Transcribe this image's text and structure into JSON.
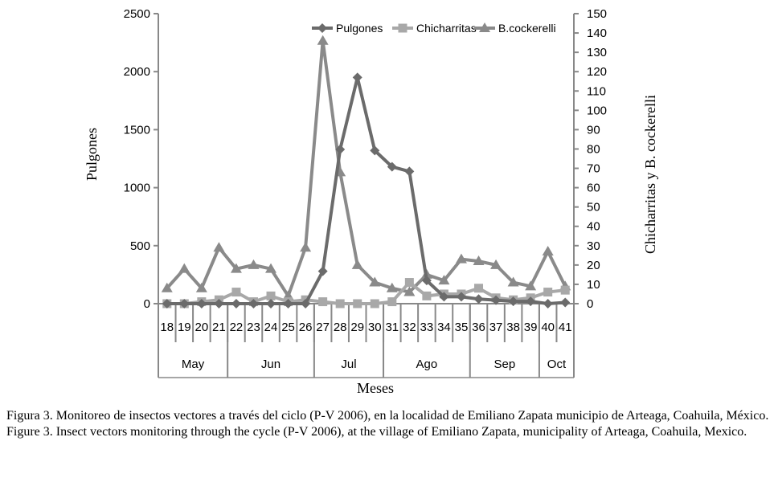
{
  "chart_data": {
    "type": "line",
    "x": [
      "18",
      "19",
      "20",
      "21",
      "22",
      "23",
      "24",
      "25",
      "26",
      "27",
      "28",
      "29",
      "30",
      "31",
      "32",
      "33",
      "34",
      "35",
      "36",
      "37",
      "38",
      "39",
      "40",
      "41"
    ],
    "months": [
      {
        "label": "May",
        "weeks": [
          "18",
          "21"
        ]
      },
      {
        "label": "Jun",
        "weeks": [
          "22",
          "26"
        ]
      },
      {
        "label": "Jul",
        "weeks": [
          "27",
          "30"
        ]
      },
      {
        "label": "Ago",
        "weeks": [
          "31",
          "35"
        ]
      },
      {
        "label": "Sep",
        "weeks": [
          "36",
          "39"
        ]
      },
      {
        "label": "Oct",
        "weeks": [
          "40",
          "41"
        ]
      }
    ],
    "xlabel": "Meses",
    "ylabel": "Pulgones",
    "y2label": "Chicharritas y B. cockerelli",
    "ylim": [
      0,
      2500
    ],
    "y2lim": [
      0,
      150
    ],
    "yticks": [
      0,
      500,
      1000,
      1500,
      2000,
      2500
    ],
    "y2ticks": [
      0,
      10,
      20,
      30,
      40,
      50,
      60,
      70,
      80,
      90,
      100,
      110,
      120,
      130,
      140,
      150
    ],
    "legend_position": "top-right",
    "series": [
      {
        "name": "Pulgones",
        "axis": "left",
        "marker": "diamond",
        "color": "#6b6b6b",
        "values": [
          0,
          0,
          0,
          0,
          0,
          0,
          0,
          0,
          0,
          280,
          1330,
          1950,
          1320,
          1180,
          1140,
          200,
          60,
          60,
          40,
          30,
          20,
          20,
          0,
          10
        ]
      },
      {
        "name": "Chicharritas",
        "axis": "right",
        "marker": "square",
        "color": "#a8a8a8",
        "values": [
          0,
          0,
          1,
          2,
          6,
          1,
          4,
          1,
          2,
          1,
          0,
          0,
          0,
          1,
          11,
          4,
          5,
          5,
          8,
          3,
          2,
          3,
          6,
          7
        ]
      },
      {
        "name": "B.cockerelli",
        "axis": "right",
        "marker": "triangle",
        "color": "#8a8a8a",
        "values": [
          8,
          18,
          8,
          29,
          18,
          20,
          18,
          4,
          29,
          136,
          68,
          20,
          11,
          8,
          6,
          15,
          12,
          23,
          22,
          20,
          11,
          9,
          27,
          9
        ]
      }
    ]
  },
  "caption": {
    "es": "Figura 3. Monitoreo de insectos vectores a través del ciclo (P-V 2006), en la localidad de Emiliano Zapata municipio de Arteaga, Coahuila, México.",
    "en": "Figure 3. Insect vectors monitoring through the cycle (P-V 2006), at the village of Emiliano Zapata, municipality of Arteaga, Coahuila, Mexico."
  }
}
